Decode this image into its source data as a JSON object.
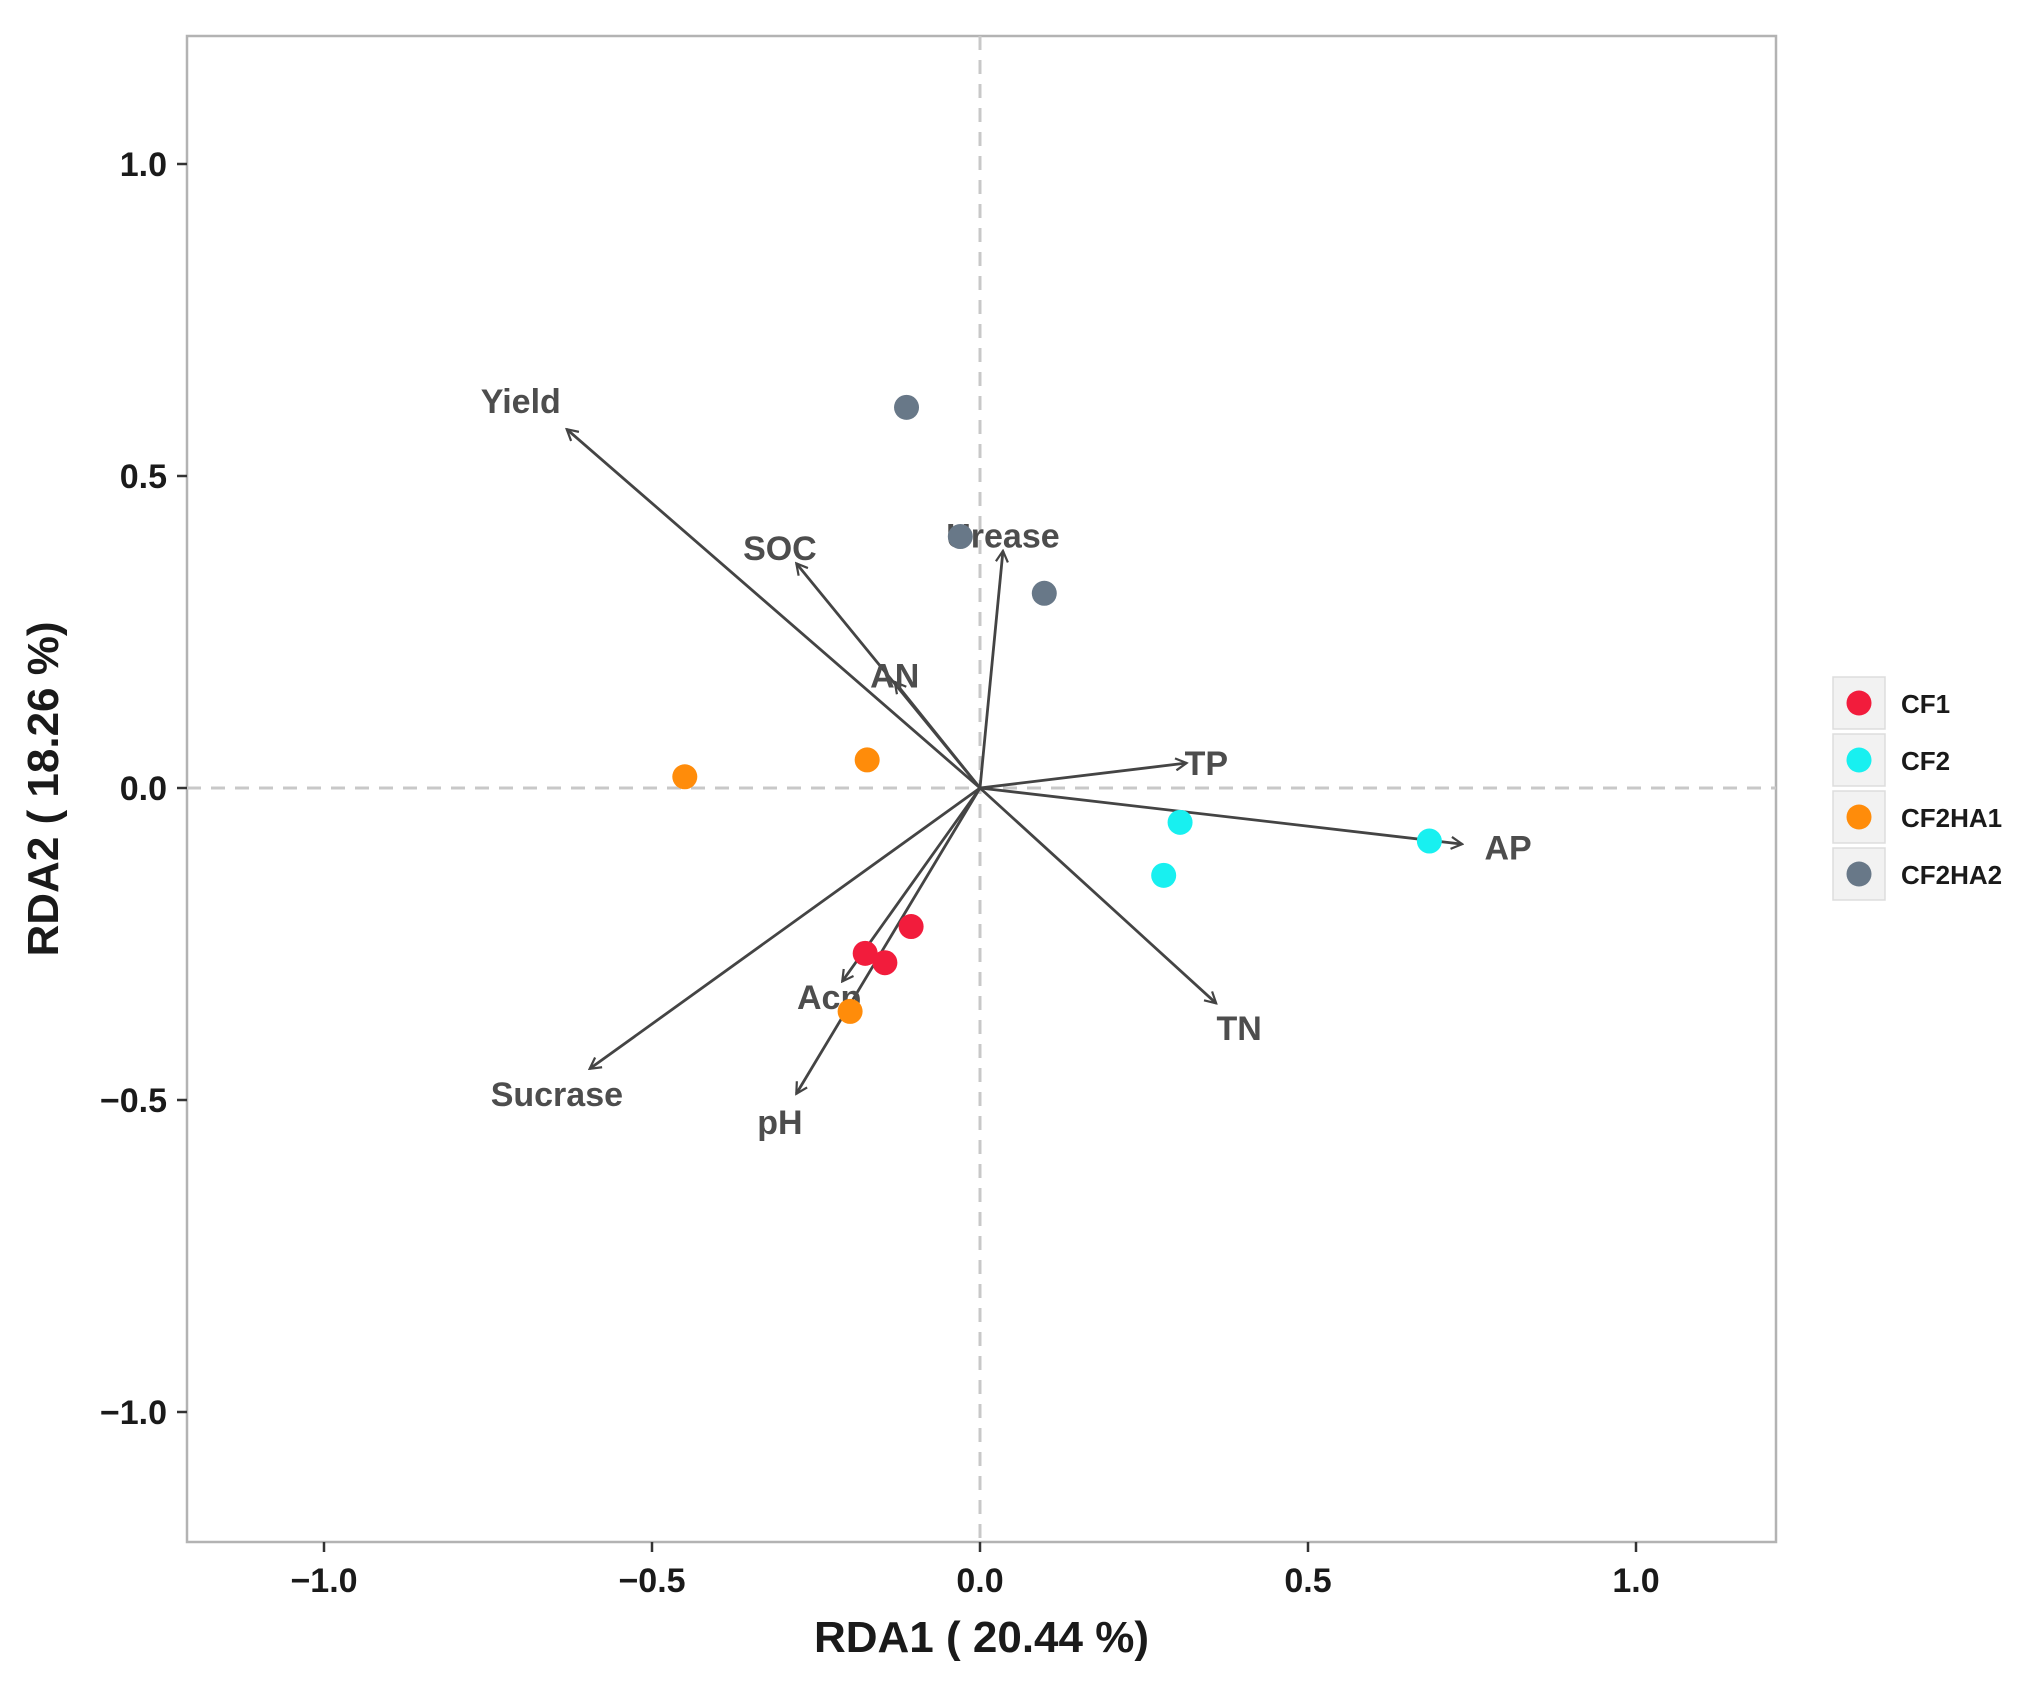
{
  "chart_data": {
    "type": "scatter",
    "subtype": "rda-biplot",
    "title": "",
    "xlabel": "RDA1 ( 20.44 %)",
    "ylabel": "RDA2 ( 18.26 %)",
    "xlim": [
      -1.2,
      1.2
    ],
    "ylim": [
      -1.2,
      1.2
    ],
    "x_ticks": [
      -1.0,
      -0.5,
      0.0,
      0.5,
      1.0
    ],
    "x_tick_labels": [
      "−1.0",
      "−0.5",
      "0.0",
      "0.5",
      "1.0"
    ],
    "y_ticks": [
      -1.0,
      -0.5,
      0.0,
      0.5,
      1.0
    ],
    "y_tick_labels": [
      "−1.0",
      "−0.5",
      "0.0",
      "0.5",
      "1.0"
    ],
    "grid": false,
    "zero_lines": "dashed",
    "legend_position": "right",
    "series": [
      {
        "name": "CF1",
        "color": "#f21c3c",
        "points": [
          [
            -0.175,
            -0.265
          ],
          [
            -0.145,
            -0.28
          ],
          [
            -0.105,
            -0.222
          ]
        ]
      },
      {
        "name": "CF2",
        "color": "#18f0f0",
        "points": [
          [
            0.305,
            -0.055
          ],
          [
            0.28,
            -0.14
          ],
          [
            0.685,
            -0.085
          ]
        ]
      },
      {
        "name": "CF2HA1",
        "color": "#ff8c0a",
        "points": [
          [
            -0.45,
            0.018
          ],
          [
            -0.172,
            0.045
          ],
          [
            -0.198,
            -0.358
          ]
        ]
      },
      {
        "name": "CF2HA2",
        "color": "#687888",
        "points": [
          [
            -0.112,
            0.61
          ],
          [
            -0.03,
            0.403
          ],
          [
            0.098,
            0.312
          ]
        ]
      }
    ],
    "vectors": [
      {
        "name": "Yield",
        "x": -0.63,
        "y": 0.575,
        "label_x": -0.7,
        "label_y": 0.62
      },
      {
        "name": "SOC",
        "x": -0.28,
        "y": 0.36,
        "label_x": -0.305,
        "label_y": 0.385
      },
      {
        "name": "Urease",
        "x": 0.035,
        "y": 0.38,
        "label_x": 0.035,
        "label_y": 0.405
      },
      {
        "name": "AN",
        "x": -0.13,
        "y": 0.17,
        "label_x": -0.13,
        "label_y": 0.18
      },
      {
        "name": "TP",
        "x": 0.315,
        "y": 0.04,
        "label_x": 0.345,
        "label_y": 0.04
      },
      {
        "name": "AP",
        "x": 0.735,
        "y": -0.09,
        "label_x": 0.805,
        "label_y": -0.095
      },
      {
        "name": "TN",
        "x": 0.36,
        "y": -0.345,
        "label_x": 0.395,
        "label_y": -0.385
      },
      {
        "name": "Acp",
        "x": -0.21,
        "y": -0.31,
        "label_x": -0.23,
        "label_y": -0.335
      },
      {
        "name": "Sucrase",
        "x": -0.595,
        "y": -0.45,
        "label_x": -0.645,
        "label_y": -0.49
      },
      {
        "name": "pH",
        "x": -0.28,
        "y": -0.49,
        "label_x": -0.305,
        "label_y": -0.535
      }
    ]
  }
}
